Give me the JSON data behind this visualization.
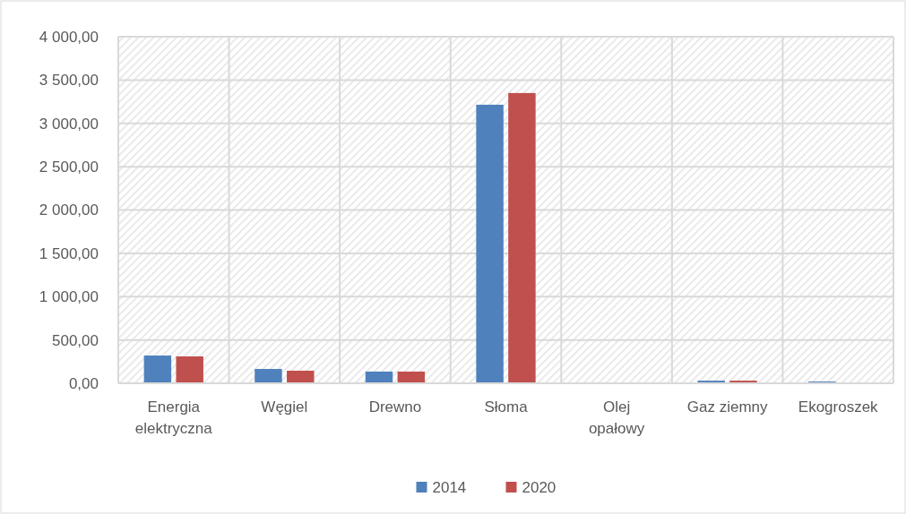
{
  "chart_data": {
    "type": "bar",
    "categories": [
      "Energia elektryczna",
      "Węgiel",
      "Drewno",
      "Słoma",
      "Olej opałowy",
      "Gaz ziemny",
      "Ekogroszek"
    ],
    "series": [
      {
        "name": "2014",
        "color": "#4f81bd",
        "values": [
          320,
          165,
          135,
          3215,
          0,
          30,
          20
        ]
      },
      {
        "name": "2020",
        "color": "#c0504d",
        "values": [
          310,
          145,
          135,
          3350,
          0,
          30,
          0
        ]
      }
    ],
    "ylim": [
      0,
      4000
    ],
    "yticks": [
      {
        "value": 0,
        "label": "0,00"
      },
      {
        "value": 500,
        "label": "500,00"
      },
      {
        "value": 1000,
        "label": "1 000,00"
      },
      {
        "value": 1500,
        "label": "1 500,00"
      },
      {
        "value": 2000,
        "label": "2 000,00"
      },
      {
        "value": 2500,
        "label": "2 500,00"
      },
      {
        "value": 3000,
        "label": "3 000,00"
      },
      {
        "value": 3500,
        "label": "3 500,00"
      },
      {
        "value": 4000,
        "label": "4 000,00"
      }
    ],
    "grid": true,
    "legend": "bottom"
  }
}
